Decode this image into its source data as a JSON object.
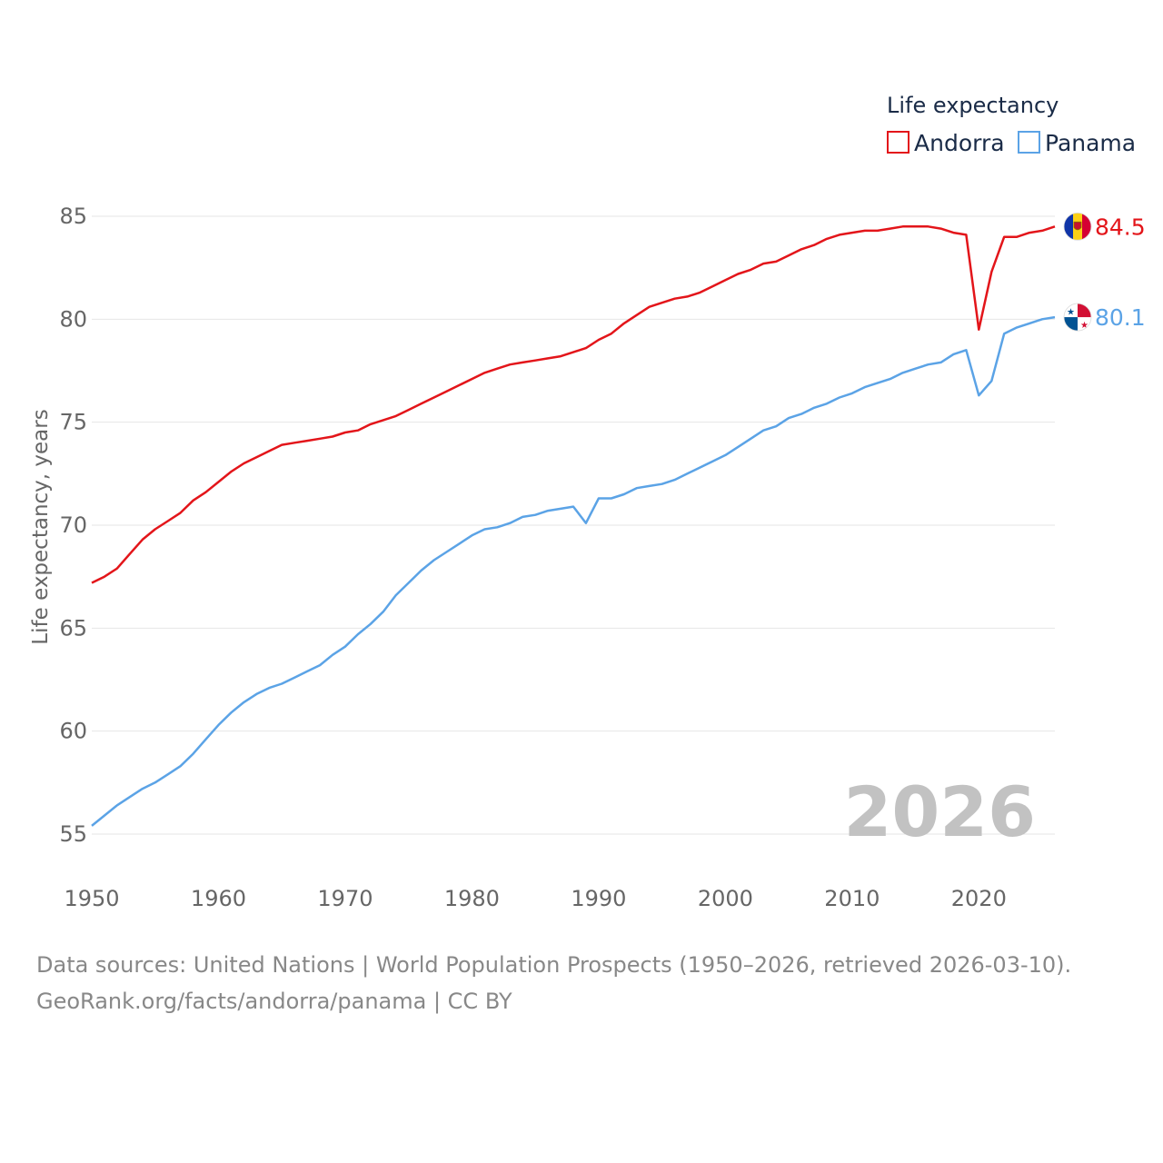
{
  "chart_data": {
    "type": "line",
    "title": "Life expectancy",
    "ylabel": "Life expectancy, years",
    "xlabel": "",
    "xlim": [
      1950,
      2026
    ],
    "ylim": [
      53.5,
      87
    ],
    "yticks": [
      55,
      60,
      65,
      70,
      75,
      80,
      85
    ],
    "xticks": [
      1950,
      1960,
      1970,
      1980,
      1990,
      2000,
      2010,
      2020
    ],
    "year_overlay": "2026",
    "series": [
      {
        "name": "Andorra",
        "color": "#e3151a",
        "end_label": "84.5",
        "flag": "andorra-flag-icon",
        "x": [
          1950,
          1951,
          1952,
          1953,
          1954,
          1955,
          1956,
          1957,
          1958,
          1959,
          1960,
          1961,
          1962,
          1963,
          1964,
          1965,
          1966,
          1967,
          1968,
          1969,
          1970,
          1971,
          1972,
          1973,
          1974,
          1975,
          1976,
          1977,
          1978,
          1979,
          1980,
          1981,
          1982,
          1983,
          1984,
          1985,
          1986,
          1987,
          1988,
          1989,
          1990,
          1991,
          1992,
          1993,
          1994,
          1995,
          1996,
          1997,
          1998,
          1999,
          2000,
          2001,
          2002,
          2003,
          2004,
          2005,
          2006,
          2007,
          2008,
          2009,
          2010,
          2011,
          2012,
          2013,
          2014,
          2015,
          2016,
          2017,
          2018,
          2019,
          2020,
          2021,
          2022,
          2023,
          2024,
          2025,
          2026
        ],
        "values": [
          67.2,
          67.5,
          67.9,
          68.6,
          69.3,
          69.8,
          70.2,
          70.6,
          71.2,
          71.6,
          72.1,
          72.6,
          73.0,
          73.3,
          73.6,
          73.9,
          74.0,
          74.1,
          74.2,
          74.3,
          74.5,
          74.6,
          74.9,
          75.1,
          75.3,
          75.6,
          75.9,
          76.2,
          76.5,
          76.8,
          77.1,
          77.4,
          77.6,
          77.8,
          77.9,
          78.0,
          78.1,
          78.2,
          78.4,
          78.6,
          79.0,
          79.3,
          79.8,
          80.2,
          80.6,
          80.8,
          81.0,
          81.1,
          81.3,
          81.6,
          81.9,
          82.2,
          82.4,
          82.7,
          82.8,
          83.1,
          83.4,
          83.6,
          83.9,
          84.1,
          84.2,
          84.3,
          84.3,
          84.4,
          84.5,
          84.5,
          84.5,
          84.4,
          84.2,
          84.1,
          79.5,
          82.3,
          84.0,
          84.0,
          84.2,
          84.3,
          84.5
        ]
      },
      {
        "name": "Panama",
        "color": "#5ba3e6",
        "end_label": "80.1",
        "flag": "panama-flag-icon",
        "x": [
          1950,
          1951,
          1952,
          1953,
          1954,
          1955,
          1956,
          1957,
          1958,
          1959,
          1960,
          1961,
          1962,
          1963,
          1964,
          1965,
          1966,
          1967,
          1968,
          1969,
          1970,
          1971,
          1972,
          1973,
          1974,
          1975,
          1976,
          1977,
          1978,
          1979,
          1980,
          1981,
          1982,
          1983,
          1984,
          1985,
          1986,
          1987,
          1988,
          1989,
          1990,
          1991,
          1992,
          1993,
          1994,
          1995,
          1996,
          1997,
          1998,
          1999,
          2000,
          2001,
          2002,
          2003,
          2004,
          2005,
          2006,
          2007,
          2008,
          2009,
          2010,
          2011,
          2012,
          2013,
          2014,
          2015,
          2016,
          2017,
          2018,
          2019,
          2020,
          2021,
          2022,
          2023,
          2024,
          2025,
          2026
        ],
        "values": [
          55.4,
          55.9,
          56.4,
          56.8,
          57.2,
          57.5,
          57.9,
          58.3,
          58.9,
          59.6,
          60.3,
          60.9,
          61.4,
          61.8,
          62.1,
          62.3,
          62.6,
          62.9,
          63.2,
          63.7,
          64.1,
          64.7,
          65.2,
          65.8,
          66.6,
          67.2,
          67.8,
          68.3,
          68.7,
          69.1,
          69.5,
          69.8,
          69.9,
          70.1,
          70.4,
          70.5,
          70.7,
          70.8,
          70.9,
          70.1,
          71.3,
          71.3,
          71.5,
          71.8,
          71.9,
          72.0,
          72.2,
          72.5,
          72.8,
          73.1,
          73.4,
          73.8,
          74.2,
          74.6,
          74.8,
          75.2,
          75.4,
          75.7,
          75.9,
          76.2,
          76.4,
          76.7,
          76.9,
          77.1,
          77.4,
          77.6,
          77.8,
          77.9,
          78.3,
          78.5,
          76.3,
          77.0,
          79.3,
          79.6,
          79.8,
          80.0,
          80.1
        ]
      }
    ]
  },
  "footer": {
    "sources": "Data sources: United Nations | World Population Prospects (1950–2026, retrieved 2026-03-10).",
    "link": "GeoRank.org/facts/andorra/panama | CC BY"
  }
}
